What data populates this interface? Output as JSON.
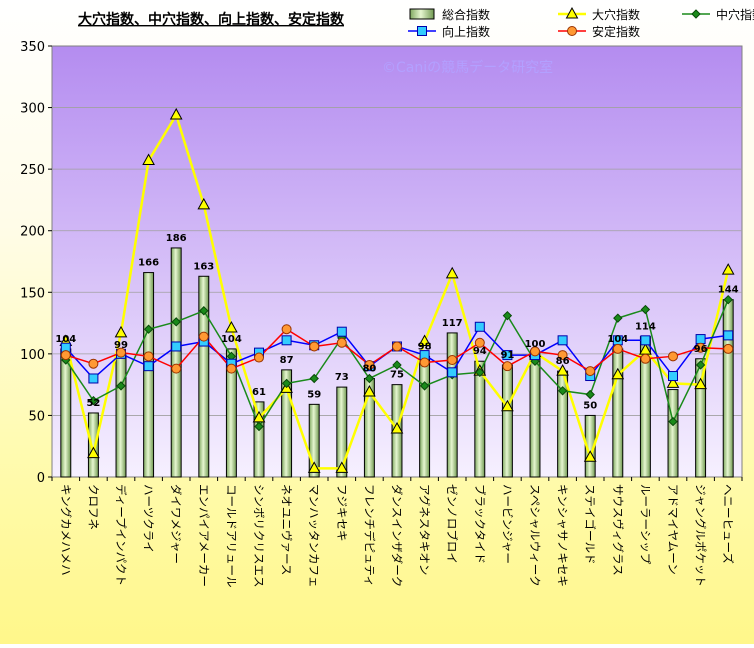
{
  "chart_data": {
    "type": "bar",
    "title": "大穴指数、中穴指数、向上指数、安定指数",
    "watermark": "©Caniの競馬データ研究室",
    "ylim": [
      0,
      350
    ],
    "yticks": [
      0,
      50,
      100,
      150,
      200,
      250,
      300,
      350
    ],
    "grid": true,
    "legend_position": "top-right",
    "categories": [
      "キングカメハメハ",
      "クロフネ",
      "ディープインパクト",
      "ハーツクライ",
      "ダイワメジャー",
      "エンパイアメーカー",
      "コールドアリュール",
      "シンボリクリスエス",
      "ネオユニヴァース",
      "マンハッタンカフェ",
      "フジキセキ",
      "フレンチデピュティ",
      "ダンスインザダーク",
      "アグネスタキオン",
      "ゼンノロブロイ",
      "ブラックタイド",
      "ハービンジャー",
      "スペシャルウィーク",
      "キンシャサノキセキ",
      "ステイゴールド",
      "サウスヴィグラス",
      "ルーラーシップ",
      "アドマイヤムーン",
      "ジャングルポケット",
      "ヘニーヒューズ"
    ],
    "series": [
      {
        "name": "総合指数",
        "kind": "bar",
        "color": "#c8e6a0",
        "values": [
          104,
          52,
          99,
          166,
          186,
          163,
          104,
          61,
          87,
          59,
          73,
          80,
          75,
          98,
          117,
          94,
          91,
          100,
          86,
          50,
          104,
          114,
          71,
          96,
          144
        ],
        "labels": [
          "104",
          "52",
          "99",
          "166",
          "186",
          "163",
          "104",
          "61",
          "87",
          "59",
          "73",
          "80",
          "75",
          "98",
          "117",
          "94",
          "91",
          "100",
          "86",
          "50",
          "104",
          "114",
          "",
          "96",
          "144"
        ]
      },
      {
        "name": "大穴指数",
        "kind": "line",
        "color": "#ffff00",
        "marker": "triangle",
        "values": [
          110,
          19,
          117,
          257,
          294,
          221,
          121,
          48,
          72,
          7,
          7,
          69,
          39,
          110,
          165,
          86,
          57,
          101,
          86,
          16,
          83,
          103,
          76,
          75,
          168
        ]
      },
      {
        "name": "中穴指数",
        "kind": "line",
        "color": "#1a8a1a",
        "marker": "diamond",
        "values": [
          95,
          62,
          74,
          120,
          126,
          135,
          98,
          41,
          76,
          80,
          113,
          80,
          91,
          74,
          83,
          85,
          131,
          94,
          70,
          67,
          129,
          136,
          45,
          91,
          144
        ]
      },
      {
        "name": "向上指数",
        "kind": "line",
        "color": "#0000ff",
        "marker": "square",
        "values": [
          105,
          80,
          100,
          90,
          106,
          110,
          92,
          101,
          111,
          107,
          118,
          90,
          106,
          99,
          85,
          122,
          99,
          99,
          111,
          82,
          111,
          111,
          82,
          112,
          115
        ]
      },
      {
        "name": "安定指数",
        "kind": "line",
        "color": "#ff0000",
        "marker": "circle",
        "values": [
          99,
          92,
          101,
          98,
          88,
          114,
          88,
          97,
          120,
          106,
          109,
          91,
          106,
          93,
          95,
          109,
          90,
          102,
          99,
          86,
          104,
          96,
          98,
          105,
          104
        ]
      }
    ]
  }
}
